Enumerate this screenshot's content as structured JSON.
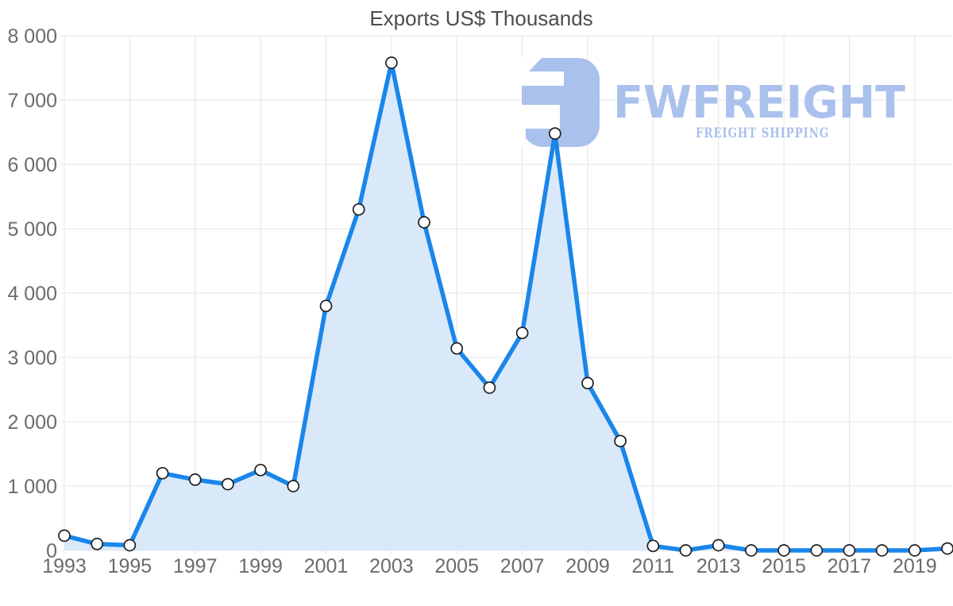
{
  "chart_data": {
    "type": "area",
    "title": "Exports US$ Thousands",
    "x": [
      1993,
      1994,
      1995,
      1996,
      1997,
      1998,
      1999,
      2000,
      2001,
      2002,
      2003,
      2004,
      2005,
      2006,
      2007,
      2008,
      2009,
      2010,
      2011,
      2012,
      2013,
      2014,
      2015,
      2016,
      2017,
      2018,
      2019,
      2020
    ],
    "values": [
      230,
      100,
      80,
      1200,
      1100,
      1030,
      1250,
      1000,
      3800,
      5300,
      7580,
      5100,
      3140,
      2530,
      3380,
      6480,
      2600,
      1700,
      70,
      0,
      80,
      0,
      0,
      0,
      0,
      0,
      0,
      30
    ],
    "x_tick_labels": [
      "1993",
      "1995",
      "1997",
      "1999",
      "2001",
      "2003",
      "2005",
      "2007",
      "2009",
      "2011",
      "2013",
      "2015",
      "2017",
      "2019"
    ],
    "y_tick_labels": [
      "0",
      "1 000",
      "2 000",
      "3 000",
      "4 000",
      "5 000",
      "6 000",
      "7 000",
      "8 000"
    ],
    "ylim": [
      0,
      8000
    ],
    "grid": true,
    "legend": "none",
    "marker_shape": "circle",
    "colors": {
      "line": "#1a86ea",
      "fill": "#d9e9fa",
      "grid": "#e4e4e4",
      "axis_text": "#6b6b6b",
      "title_text": "#4d4d4d",
      "marker_fill": "#ffffff",
      "marker_stroke": "#1f1f1f",
      "watermark": "#aac1ed"
    }
  },
  "watermark": {
    "brand": "FWFREIGHT",
    "tagline": "FREIGHT SHIPPING"
  }
}
